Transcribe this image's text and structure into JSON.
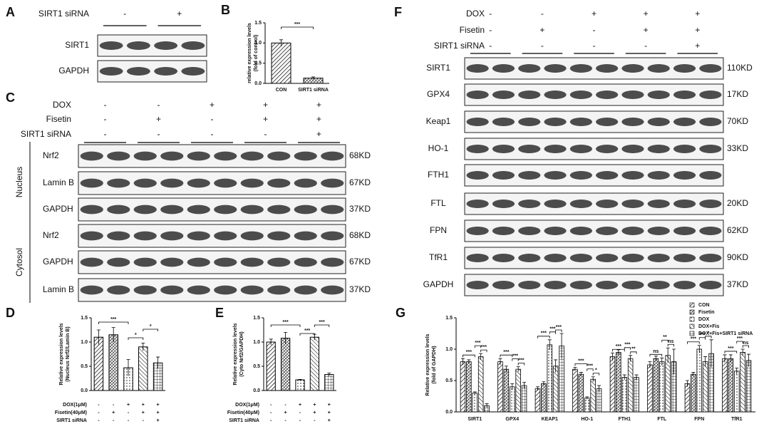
{
  "blots": [
    {
      "letter": "A",
      "conditions": [
        {
          "label": "SIRT1 siRNA",
          "marks": [
            "-",
            "+"
          ]
        }
      ],
      "bands": [
        {
          "name": "SIRT1"
        },
        {
          "name": "GAPDH"
        }
      ]
    },
    {
      "letter": "C",
      "conditions": [
        {
          "label": "DOX",
          "marks": [
            "-",
            "-",
            "+",
            "+",
            "+"
          ]
        },
        {
          "label": "Fisetin",
          "marks": [
            "-",
            "+",
            "-",
            "+",
            "+"
          ]
        },
        {
          "label": "SIRT1 siRNA",
          "marks": [
            "-",
            "-",
            "-",
            "-",
            "+"
          ]
        }
      ],
      "groups": [
        {
          "label": "Nucleus",
          "bands": [
            {
              "name": "Nrf2",
              "size": "68KD"
            },
            {
              "name": "Lamin B",
              "size": "67KD"
            },
            {
              "name": "GAPDH",
              "size": "37KD"
            }
          ]
        },
        {
          "label": "Cytosol",
          "bands": [
            {
              "name": "Nrf2",
              "size": "68KD"
            },
            {
              "name": "GAPDH",
              "size": "67KD"
            },
            {
              "name": "Lamin B",
              "size": "37KD"
            }
          ]
        }
      ]
    },
    {
      "letter": "F",
      "conditions": [
        {
          "label": "DOX",
          "marks": [
            "-",
            "-",
            "+",
            "+",
            "+"
          ]
        },
        {
          "label": "Fisetin",
          "marks": [
            "-",
            "+",
            "-",
            "+",
            "+"
          ]
        },
        {
          "label": "SIRT1 siRNA",
          "marks": [
            "-",
            "-",
            "-",
            "-",
            "+"
          ]
        }
      ],
      "bands": [
        {
          "name": "SIRT1",
          "size": "110KD"
        },
        {
          "name": "GPX4",
          "size": "17KD"
        },
        {
          "name": "Keap1",
          "size": "70KD"
        },
        {
          "name": "HO-1",
          "size": "33KD"
        },
        {
          "name": "FTH1"
        },
        {
          "name": "FTL",
          "size": "20KD"
        },
        {
          "name": "FPN",
          "size": "62KD"
        },
        {
          "name": "TfR1",
          "size": "90KD"
        },
        {
          "name": "GAPDH",
          "size": "37KD"
        }
      ]
    }
  ],
  "chart_data": [
    {
      "panel": "B",
      "type": "bar",
      "y_label": [
        "relative expression levels",
        "(fold of control)"
      ],
      "categories": [
        "CON",
        "SIRT1 siRNA"
      ],
      "values": [
        1.0,
        0.13
      ],
      "errors": [
        0.08,
        0.03
      ],
      "color": "#000000",
      "ylim": [
        0,
        1.5
      ],
      "yticks": [
        {
          "value": 0,
          "label": "0.0"
        },
        0.5,
        {
          "value": 1,
          "label": "1.0"
        },
        1.5
      ],
      "significance": [
        "***"
      ]
    },
    {
      "panel": "D",
      "type": "bar",
      "y_label": [
        "Relative expression levels",
        "(Nucleus Nrf2/Lamin B)"
      ],
      "categories": [
        null,
        null,
        null,
        null,
        null
      ],
      "values": [
        1.1,
        1.15,
        0.47,
        0.9,
        0.57
      ],
      "errors": [
        0.15,
        0.15,
        0.17,
        0.08,
        0.12
      ],
      "color": "#000000",
      "ylim": [
        0,
        1.5
      ],
      "yticks": [
        {
          "value": 0,
          "label": "0.0"
        },
        0.5,
        {
          "value": 1,
          "label": "1.0"
        },
        1.5
      ],
      "significance": [
        "***",
        "*",
        "*"
      ],
      "conditions": [
        {
          "label": "DOX(1μM)",
          "marks": [
            "-",
            "-",
            "+",
            "+",
            "+"
          ]
        },
        {
          "label": "Fisetin(40μM)",
          "marks": [
            "-",
            "+",
            "-",
            "+",
            "+"
          ]
        },
        {
          "label": "SIRT1 siRNA",
          "marks": [
            "-",
            "-",
            "-",
            "-",
            "+"
          ]
        }
      ]
    },
    {
      "panel": "E",
      "type": "bar",
      "y_label": [
        "Relative expression levels",
        "(Cyto Nrf2/GAPDH)"
      ],
      "categories": [
        null,
        null,
        null,
        null,
        null
      ],
      "values": [
        1.0,
        1.08,
        0.22,
        1.1,
        0.33
      ],
      "errors": [
        0.06,
        0.12,
        0.01,
        0.06,
        0.03
      ],
      "color": "#000000",
      "ylim": [
        0,
        1.5
      ],
      "yticks": [
        {
          "value": 0,
          "label": "0.0"
        },
        0.5,
        {
          "value": 1,
          "label": "1.0"
        },
        1.5
      ],
      "significance": [
        "***",
        "***",
        "***"
      ],
      "conditions": [
        {
          "label": "DOX(1μM)",
          "marks": [
            "-",
            "-",
            "+",
            "+",
            "+"
          ]
        },
        {
          "label": "Fisetin(40μM)",
          "marks": [
            "-",
            "+",
            "-",
            "+",
            "+"
          ]
        },
        {
          "label": "SIRT1 siRNA",
          "marks": [
            "-",
            "-",
            "-",
            "-",
            "+"
          ]
        }
      ]
    },
    {
      "panel": "G",
      "type": "grouped_bar",
      "y_label": [
        "Relative expression levels",
        "(fold of GAPDH)"
      ],
      "categories": [
        "SIRT1",
        "GPX4",
        "KEAP1",
        "HO-1",
        "FTH1",
        "FTL",
        "FPN",
        "TfR1"
      ],
      "series": [
        {
          "name": "CON",
          "color": "#000000",
          "values": [
            0.8,
            0.8,
            0.37,
            0.68,
            0.88,
            0.75,
            0.45,
            0.85
          ],
          "errors": [
            0.05,
            0.05,
            0.03,
            0.03,
            0.06,
            0.05,
            0.05,
            0.06
          ]
        },
        {
          "name": "Fisetin",
          "color": "#000000",
          "values": [
            0.8,
            0.68,
            0.45,
            0.6,
            0.95,
            0.85,
            0.6,
            0.85
          ],
          "errors": [
            0.03,
            0.05,
            0.03,
            0.03,
            0.04,
            0.04,
            0.03,
            0.06
          ]
        },
        {
          "name": "DOX",
          "color": "#000000",
          "values": [
            0.3,
            0.4,
            1.07,
            0.22,
            0.55,
            0.8,
            1.0,
            0.65
          ],
          "errors": [
            0.02,
            0.05,
            0.08,
            0.02,
            0.04,
            0.06,
            0.06,
            0.05
          ]
        },
        {
          "name": "DOX+Fis",
          "color": "#000000",
          "values": [
            0.88,
            0.68,
            0.73,
            0.52,
            0.85,
            0.9,
            0.8,
            0.95
          ],
          "errors": [
            0.05,
            0.04,
            0.1,
            0.04,
            0.05,
            0.12,
            0.08,
            0.05
          ]
        },
        {
          "name": "DOX+Fis+SIRT1 siRNA",
          "color": "#000000",
          "values": [
            0.1,
            0.42,
            1.05,
            0.37,
            0.55,
            0.8,
            0.93,
            0.82
          ],
          "errors": [
            0.03,
            0.05,
            0.2,
            0.05,
            0.04,
            0.2,
            0.22,
            0.1
          ]
        }
      ],
      "ylim": [
        0,
        1.5
      ],
      "yticks": [
        {
          "value": 0,
          "label": "0.0"
        },
        0.5,
        {
          "value": 1,
          "label": "1.0"
        },
        1.5
      ],
      "significance": [
        [
          "***",
          "***",
          "***"
        ],
        [
          "***",
          "***",
          "***"
        ],
        [
          "***",
          "***",
          "***"
        ],
        [
          "***",
          "***",
          "*"
        ],
        [
          "***",
          "***",
          "**"
        ],
        [
          "ns",
          "**",
          "ns"
        ],
        [
          "***",
          "***",
          "*"
        ],
        [
          "***",
          "***",
          "ns"
        ]
      ]
    }
  ]
}
